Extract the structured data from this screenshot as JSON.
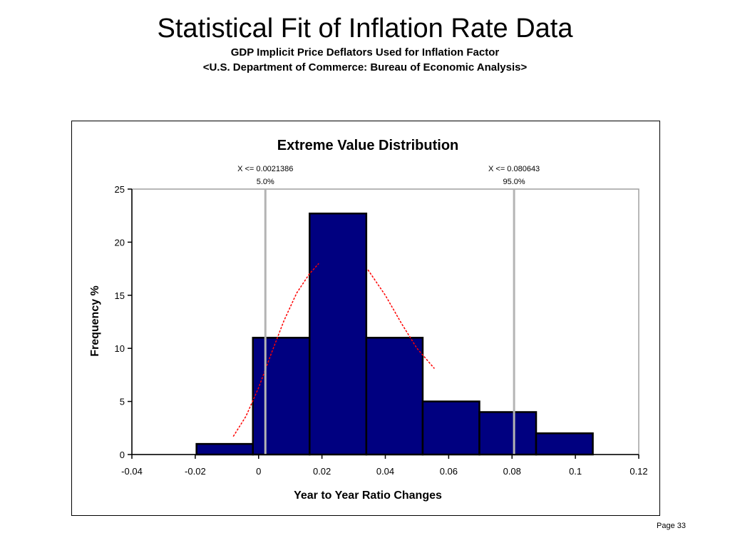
{
  "slide": {
    "title": "Statistical Fit of Inflation Rate Data",
    "subtitle1": "GDP Implicit Price Deflators Used for Inflation Factor",
    "subtitle2": "<U.S. Department of Commerce:  Bureau of Economic Analysis>",
    "page": "Page 33"
  },
  "colors": {
    "bar_fill": "#000080",
    "bar_stroke": "#000000",
    "fit_curve": "#ff0000",
    "marker_line": "#b4b4b4"
  },
  "chart_data": {
    "type": "bar",
    "title": "Extreme Value Distribution",
    "xlabel": "Year to Year Ratio Changes",
    "ylabel": "Frequency %",
    "xlim": [
      -0.04,
      0.12
    ],
    "ylim": [
      0,
      25
    ],
    "x_ticks": [
      -0.04,
      -0.02,
      0,
      0.02,
      0.04,
      0.06,
      0.08,
      0.1,
      0.12
    ],
    "x_tick_labels": [
      "-0.04",
      "-0.02",
      "0",
      "0.02",
      "0.04",
      "0.06",
      "0.08",
      "0.1",
      "0.12"
    ],
    "y_ticks": [
      0,
      5,
      10,
      15,
      20,
      25
    ],
    "y_tick_labels": [
      "0",
      "5",
      "10",
      "15",
      "20",
      "25"
    ],
    "bins": [
      {
        "start": -0.0196,
        "end": -0.0018,
        "value": 1
      },
      {
        "start": -0.0018,
        "end": 0.0161,
        "value": 11
      },
      {
        "start": 0.0161,
        "end": 0.034,
        "value": 22.7
      },
      {
        "start": 0.034,
        "end": 0.0518,
        "value": 11
      },
      {
        "start": 0.0518,
        "end": 0.0697,
        "value": 5
      },
      {
        "start": 0.0697,
        "end": 0.0876,
        "value": 4
      },
      {
        "start": 0.0876,
        "end": 0.1055,
        "value": 2
      }
    ],
    "fit_curve": {
      "name": "Extreme Value fit",
      "style": "dashed",
      "segments": [
        {
          "x": [
            -0.008,
            -0.004,
            0,
            0.004,
            0.008,
            0.012,
            0.016,
            0.019
          ],
          "y": [
            1.7,
            3.6,
            6.3,
            9.5,
            12.6,
            15.2,
            17.0,
            18.0
          ]
        },
        {
          "x": [
            0.0345,
            0.04,
            0.045,
            0.05,
            0.0555
          ],
          "y": [
            17.4,
            15.0,
            12.4,
            10.0,
            8.1
          ]
        }
      ]
    },
    "markers": [
      {
        "x": 0.0021386,
        "label": "X <= 0.0021386",
        "percent": "5.0%"
      },
      {
        "x": 0.080643,
        "label": "X <= 0.080643",
        "percent": "95.0%"
      }
    ]
  }
}
